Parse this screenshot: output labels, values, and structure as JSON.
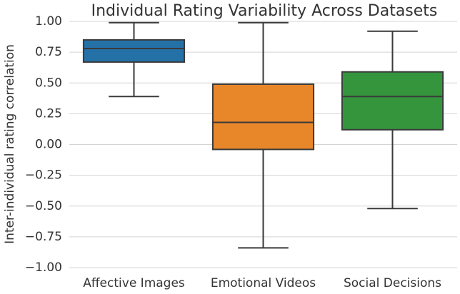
{
  "chart_data": {
    "type": "box",
    "title": "Individual Rating Variability Across Datasets",
    "y_label": "Inter-individual rating correlation",
    "categories": [
      "Affective Images",
      "Emotional Videos",
      "Social Decisions"
    ],
    "colors": [
      "#2471a8",
      "#e8862a",
      "#34953c"
    ],
    "whisker_low": [
      0.39,
      -0.84,
      -0.52
    ],
    "q1": [
      0.67,
      -0.04,
      0.12
    ],
    "median": [
      0.78,
      0.18,
      0.39
    ],
    "q3": [
      0.85,
      0.49,
      0.59
    ],
    "whisker_high": [
      0.99,
      0.99,
      0.92
    ],
    "ylim": [
      -1.0,
      1.0
    ],
    "yticks": [
      {
        "value": -1.0,
        "label": "−1.00"
      },
      {
        "value": -0.75,
        "label": "−0.75"
      },
      {
        "value": -0.5,
        "label": "−0.50"
      },
      {
        "value": -0.25,
        "label": "−0.25"
      },
      {
        "value": 0,
        "label": "0.00"
      },
      {
        "value": 0.25,
        "label": "0.25"
      },
      {
        "value": 0.5,
        "label": "0.50"
      },
      {
        "value": 0.75,
        "label": "0.75"
      },
      {
        "value": 1.0,
        "label": "1.00"
      }
    ],
    "grid": true
  }
}
